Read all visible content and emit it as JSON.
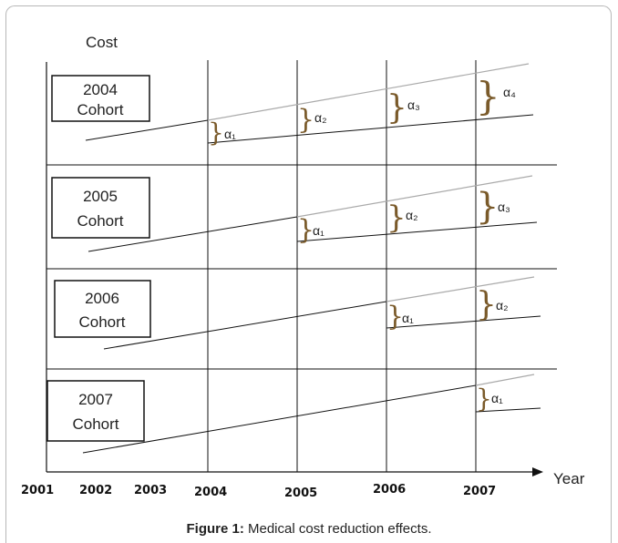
{
  "axis": {
    "y_label": "Cost",
    "x_label": "Year",
    "years": [
      "2001",
      "2002",
      "2003",
      "2004",
      "2005",
      "2006",
      "2007"
    ]
  },
  "cohorts": [
    {
      "line1": "2004",
      "line2": "Cohort",
      "alphas": [
        "α₁",
        "α₂",
        "α₃",
        "α₄"
      ]
    },
    {
      "line1": "2005",
      "line2": "Cohort",
      "alphas": [
        "α₁",
        "α₂",
        "α₃"
      ]
    },
    {
      "line1": "2006",
      "line2": "Cohort",
      "alphas": [
        "α₁",
        "α₂"
      ]
    },
    {
      "line1": "2007",
      "line2": "Cohort",
      "alphas": [
        "α₁"
      ]
    }
  ],
  "caption": {
    "prefix": "Figure 1:",
    "text": " Medical cost reduction effects."
  },
  "colors": {
    "line": "#111111",
    "projection": "#aaaaaa",
    "brace": "#7a5a2a"
  }
}
